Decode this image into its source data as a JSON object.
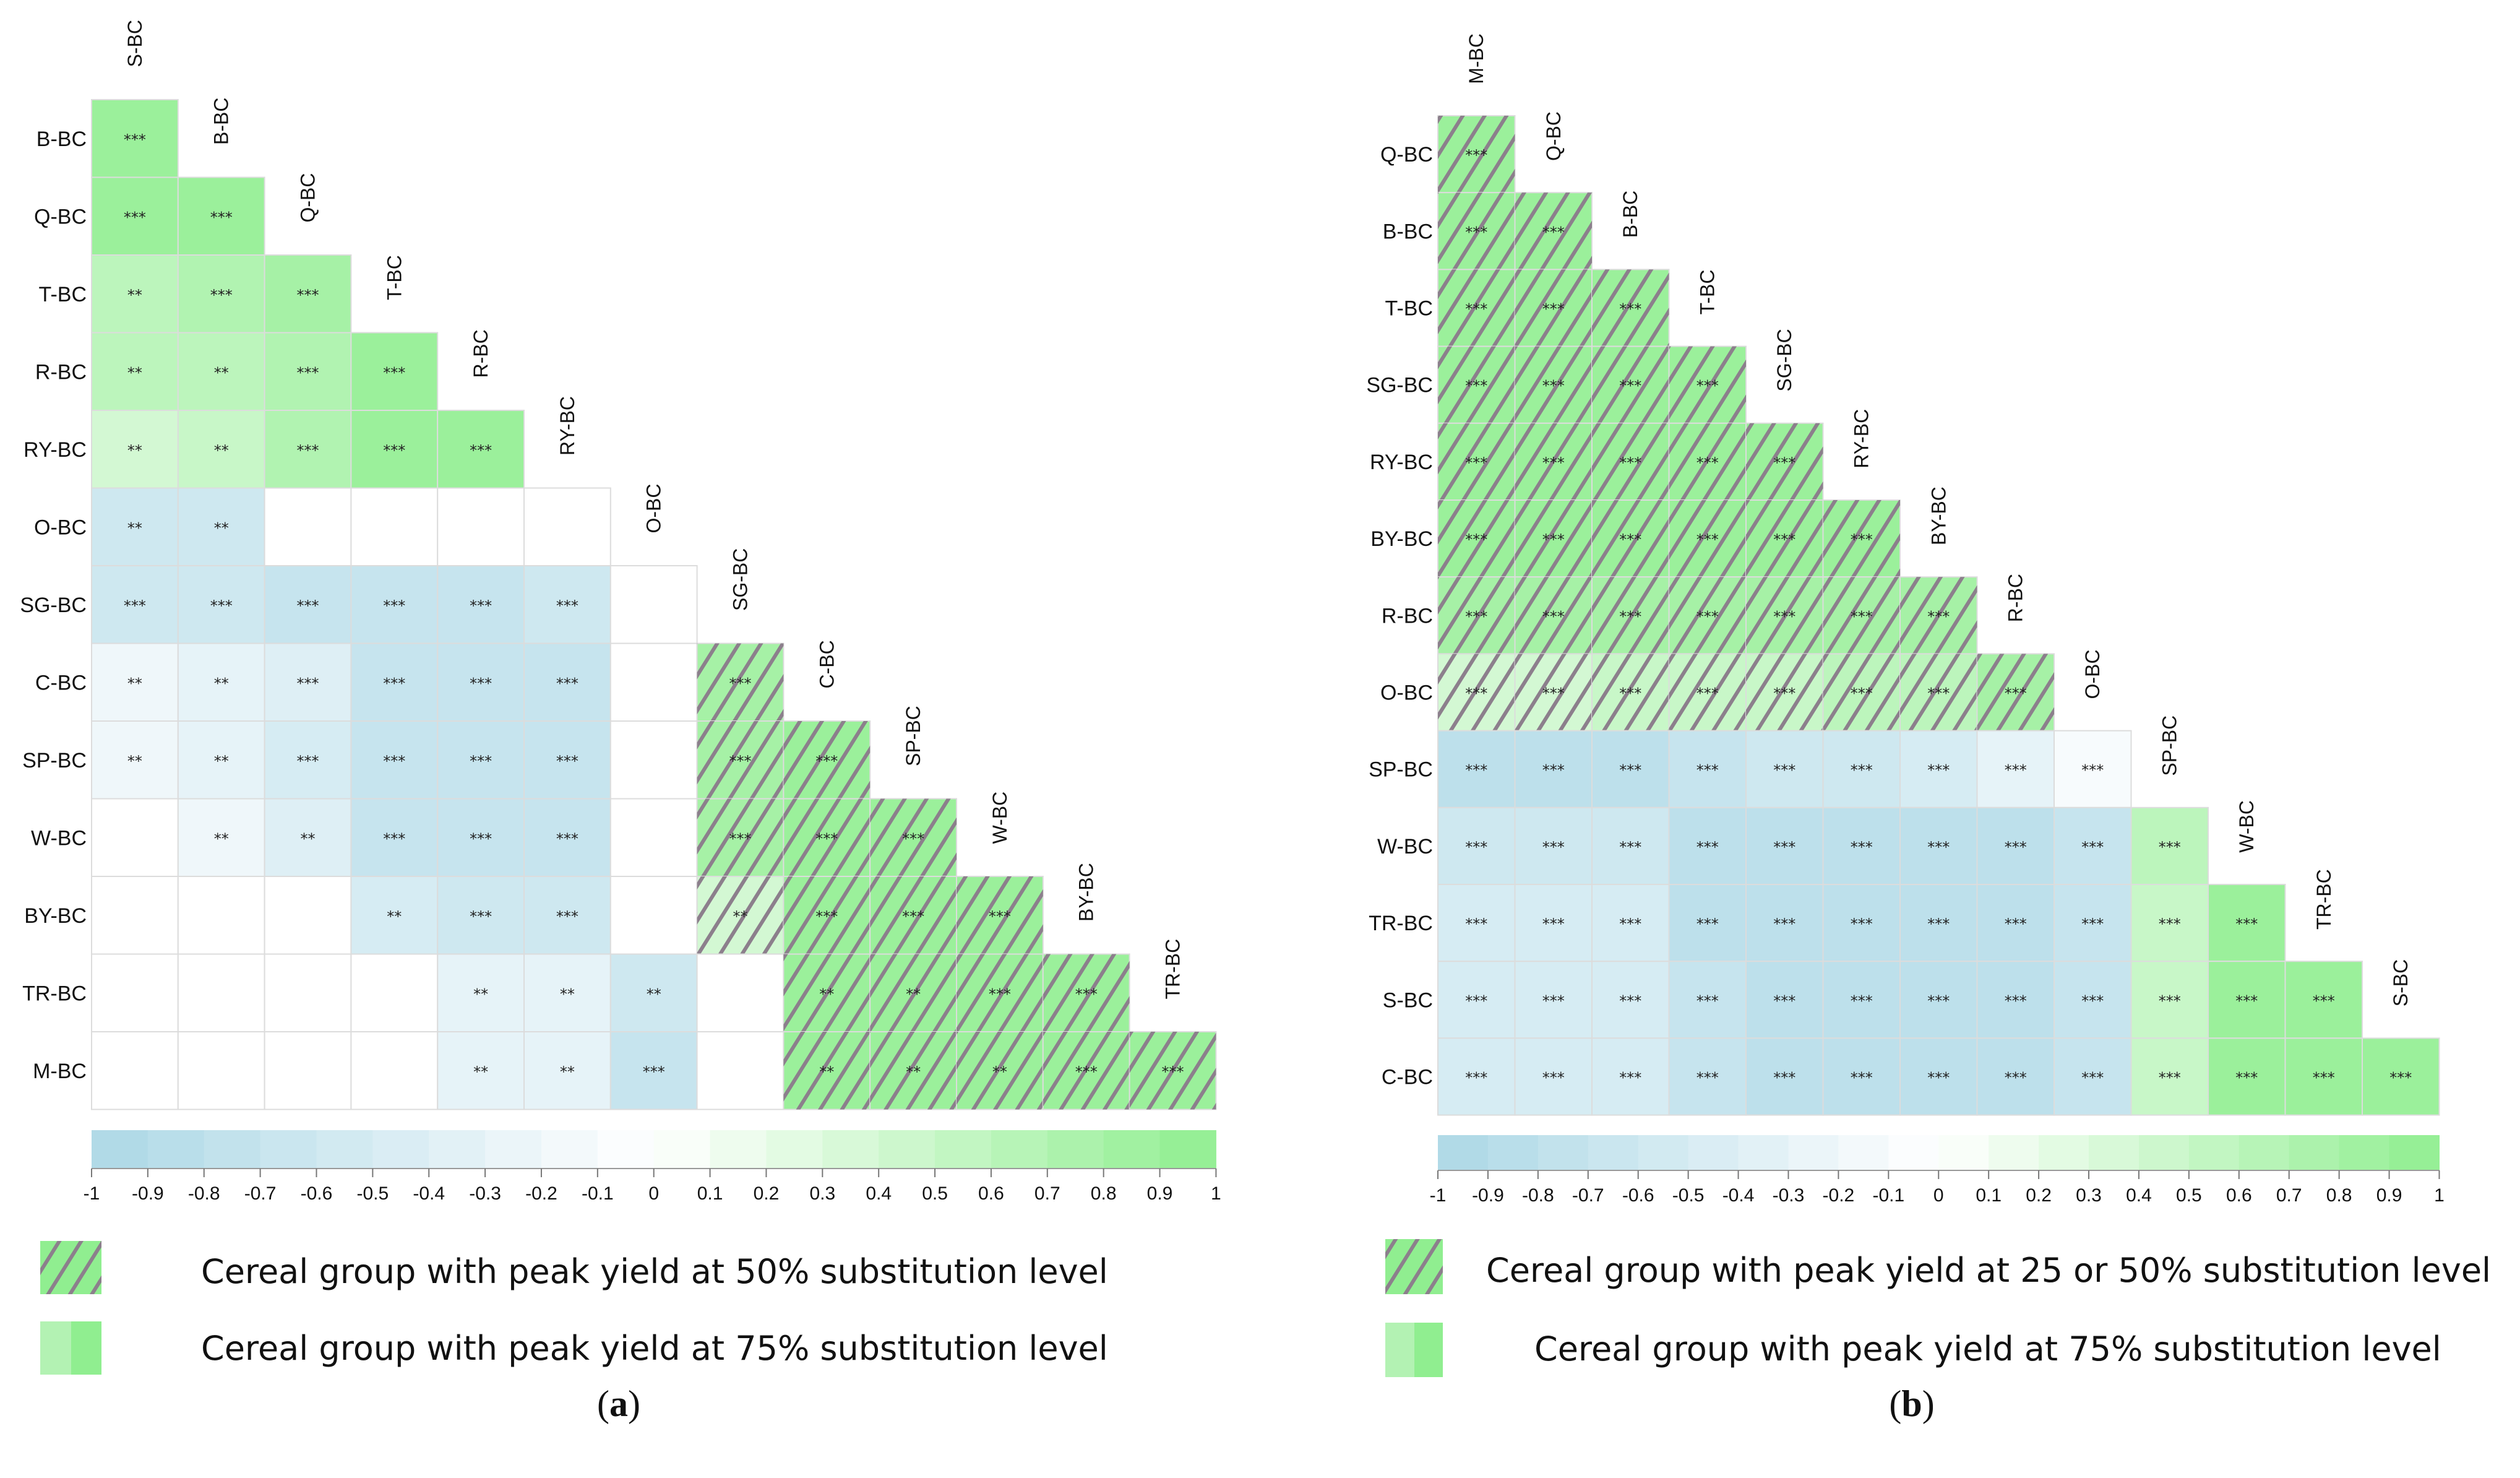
{
  "colors": {
    "negative": "#add8e6",
    "neutral": "#ffffff",
    "positive": "#90ee90",
    "hatch_line": "#8c7f8c",
    "grid": "#dcdcdc"
  },
  "chart_data": [
    {
      "type": "heatmap",
      "panel": "a",
      "caption_label": "a",
      "columns": [
        "S-BC",
        "B-BC",
        "Q-BC",
        "T-BC",
        "R-BC",
        "RY-BC",
        "O-BC",
        "SG-BC",
        "C-BC",
        "SP-BC",
        "W-BC",
        "BY-BC",
        "TR-BC"
      ],
      "rows": [
        "B-BC",
        "Q-BC",
        "T-BC",
        "R-BC",
        "RY-BC",
        "O-BC",
        "SG-BC",
        "C-BC",
        "SP-BC",
        "W-BC",
        "BY-BC",
        "TR-BC",
        "M-BC"
      ],
      "values": [
        [
          0.9
        ],
        [
          0.9,
          0.9
        ],
        [
          0.6,
          0.7,
          0.8
        ],
        [
          0.6,
          0.6,
          0.7,
          0.9
        ],
        [
          0.4,
          0.5,
          0.7,
          0.9,
          0.9
        ],
        [
          -0.6,
          -0.6,
          null,
          null,
          null,
          null
        ],
        [
          -0.6,
          -0.6,
          -0.7,
          -0.7,
          -0.7,
          -0.6,
          null
        ],
        [
          -0.2,
          -0.3,
          -0.4,
          -0.7,
          -0.7,
          -0.7,
          null,
          0.8
        ],
        [
          -0.2,
          -0.3,
          -0.5,
          -0.7,
          -0.7,
          -0.7,
          null,
          0.8,
          0.9
        ],
        [
          null,
          -0.2,
          -0.4,
          -0.7,
          -0.7,
          -0.7,
          null,
          0.8,
          0.9,
          0.9
        ],
        [
          null,
          null,
          null,
          -0.5,
          -0.6,
          -0.6,
          null,
          0.4,
          0.9,
          0.9,
          0.9
        ],
        [
          null,
          null,
          null,
          null,
          -0.3,
          -0.3,
          -0.6,
          null,
          0.9,
          0.9,
          0.9,
          0.9
        ],
        [
          null,
          null,
          null,
          null,
          -0.3,
          -0.3,
          -0.7,
          null,
          0.9,
          0.9,
          0.9,
          0.9,
          0.9
        ]
      ],
      "significance": [
        [
          "***"
        ],
        [
          "***",
          "***"
        ],
        [
          "**",
          "***",
          "***"
        ],
        [
          "**",
          "**",
          "***",
          "***"
        ],
        [
          "**",
          "**",
          "***",
          "***",
          "***"
        ],
        [
          "**",
          "**",
          "",
          "",
          "",
          ""
        ],
        [
          "***",
          "***",
          "***",
          "***",
          "***",
          "***",
          ""
        ],
        [
          "**",
          "**",
          "***",
          "***",
          "***",
          "***",
          "",
          "***"
        ],
        [
          "**",
          "**",
          "***",
          "***",
          "***",
          "***",
          "",
          "***",
          "***"
        ],
        [
          "",
          "**",
          "**",
          "***",
          "***",
          "***",
          "",
          "***",
          "***",
          "***"
        ],
        [
          "",
          "",
          "",
          "**",
          "***",
          "***",
          "",
          "**",
          "***",
          "***",
          "***"
        ],
        [
          "",
          "",
          "",
          "",
          "**",
          "**",
          "**",
          "",
          "**",
          "**",
          "***",
          "***"
        ],
        [
          "",
          "",
          "",
          "",
          "**",
          "**",
          "***",
          "",
          "**",
          "**",
          "**",
          "***",
          "***"
        ]
      ],
      "hatch": {
        "axis": "column",
        "labels": [
          "SG-BC",
          "C-BC",
          "SP-BC",
          "W-BC",
          "BY-BC",
          "TR-BC"
        ]
      },
      "colorbar": {
        "range": [
          -1,
          1
        ],
        "ticks": [
          "-1",
          "-0.9",
          "-0.8",
          "-0.7",
          "-0.6",
          "-0.5",
          "-0.4",
          "-0.3",
          "-0.2",
          "-0.1",
          "0",
          "0.1",
          "0.2",
          "0.3",
          "0.4",
          "0.5",
          "0.6",
          "0.7",
          "0.8",
          "0.9",
          "1"
        ]
      },
      "legend": [
        {
          "swatch": "hatched",
          "text": "Cereal group with peak yield at 50% substitution level"
        },
        {
          "swatch": "solid",
          "text": "Cereal group with peak yield at 75% substitution level"
        }
      ]
    },
    {
      "type": "heatmap",
      "panel": "b",
      "caption_label": "b",
      "columns": [
        "M-BC",
        "Q-BC",
        "B-BC",
        "T-BC",
        "SG-BC",
        "RY-BC",
        "BY-BC",
        "R-BC",
        "O-BC",
        "SP-BC",
        "W-BC",
        "TR-BC",
        "S-BC"
      ],
      "rows": [
        "Q-BC",
        "B-BC",
        "T-BC",
        "SG-BC",
        "RY-BC",
        "BY-BC",
        "R-BC",
        "O-BC",
        "SP-BC",
        "W-BC",
        "TR-BC",
        "S-BC",
        "C-BC"
      ],
      "values": [
        [
          0.9
        ],
        [
          0.9,
          0.9
        ],
        [
          0.9,
          0.9,
          0.9
        ],
        [
          0.9,
          0.9,
          0.9,
          0.9
        ],
        [
          0.9,
          0.9,
          0.9,
          0.9,
          0.9
        ],
        [
          0.9,
          0.9,
          0.9,
          0.9,
          0.9,
          0.9
        ],
        [
          0.8,
          0.8,
          0.8,
          0.8,
          0.8,
          0.8,
          0.8
        ],
        [
          0.4,
          0.4,
          0.5,
          0.5,
          0.5,
          0.6,
          0.6,
          0.8
        ],
        [
          -0.8,
          -0.8,
          -0.8,
          -0.7,
          -0.6,
          -0.6,
          -0.5,
          -0.3,
          -0.1
        ],
        [
          -0.6,
          -0.6,
          -0.6,
          -0.8,
          -0.8,
          -0.8,
          -0.8,
          -0.8,
          -0.7,
          0.6
        ],
        [
          -0.5,
          -0.5,
          -0.5,
          -0.8,
          -0.8,
          -0.8,
          -0.8,
          -0.8,
          -0.7,
          0.5,
          0.9
        ],
        [
          -0.5,
          -0.5,
          -0.5,
          -0.7,
          -0.8,
          -0.8,
          -0.8,
          -0.8,
          -0.7,
          0.5,
          0.9,
          0.9
        ],
        [
          -0.5,
          -0.5,
          -0.5,
          -0.7,
          -0.8,
          -0.8,
          -0.8,
          -0.8,
          -0.7,
          0.5,
          0.9,
          0.9,
          0.9
        ]
      ],
      "significance": [
        [
          "***"
        ],
        [
          "***",
          "***"
        ],
        [
          "***",
          "***",
          "***"
        ],
        [
          "***",
          "***",
          "***",
          "***"
        ],
        [
          "***",
          "***",
          "***",
          "***",
          "***"
        ],
        [
          "***",
          "***",
          "***",
          "***",
          "***",
          "***"
        ],
        [
          "***",
          "***",
          "***",
          "***",
          "***",
          "***",
          "***"
        ],
        [
          "***",
          "***",
          "***",
          "***",
          "***",
          "***",
          "***",
          "***"
        ],
        [
          "***",
          "***",
          "***",
          "***",
          "***",
          "***",
          "***",
          "***",
          "***"
        ],
        [
          "***",
          "***",
          "***",
          "***",
          "***",
          "***",
          "***",
          "***",
          "***",
          "***"
        ],
        [
          "***",
          "***",
          "***",
          "***",
          "***",
          "***",
          "***",
          "***",
          "***",
          "***",
          "***"
        ],
        [
          "***",
          "***",
          "***",
          "***",
          "***",
          "***",
          "***",
          "***",
          "***",
          "***",
          "***",
          "***"
        ],
        [
          "***",
          "***",
          "***",
          "***",
          "***",
          "***",
          "***",
          "***",
          "***",
          "***",
          "***",
          "***",
          "***"
        ]
      ],
      "hatch": {
        "axis": "row",
        "labels": [
          "Q-BC",
          "B-BC",
          "T-BC",
          "SG-BC",
          "RY-BC",
          "BY-BC",
          "R-BC",
          "O-BC"
        ]
      },
      "colorbar": {
        "range": [
          -1,
          1
        ],
        "ticks": [
          "-1",
          "-0.9",
          "-0.8",
          "-0.7",
          "-0.6",
          "-0.5",
          "-0.4",
          "-0.3",
          "-0.2",
          "-0.1",
          "0",
          "0.1",
          "0.2",
          "0.3",
          "0.4",
          "0.5",
          "0.6",
          "0.7",
          "0.8",
          "0.9",
          "1"
        ]
      },
      "legend": [
        {
          "swatch": "hatched",
          "text": "Cereal group with peak yield at 25 or 50% substitution level"
        },
        {
          "swatch": "solid",
          "text": "Cereal group with peak yield at 75% substitution level"
        }
      ]
    }
  ]
}
